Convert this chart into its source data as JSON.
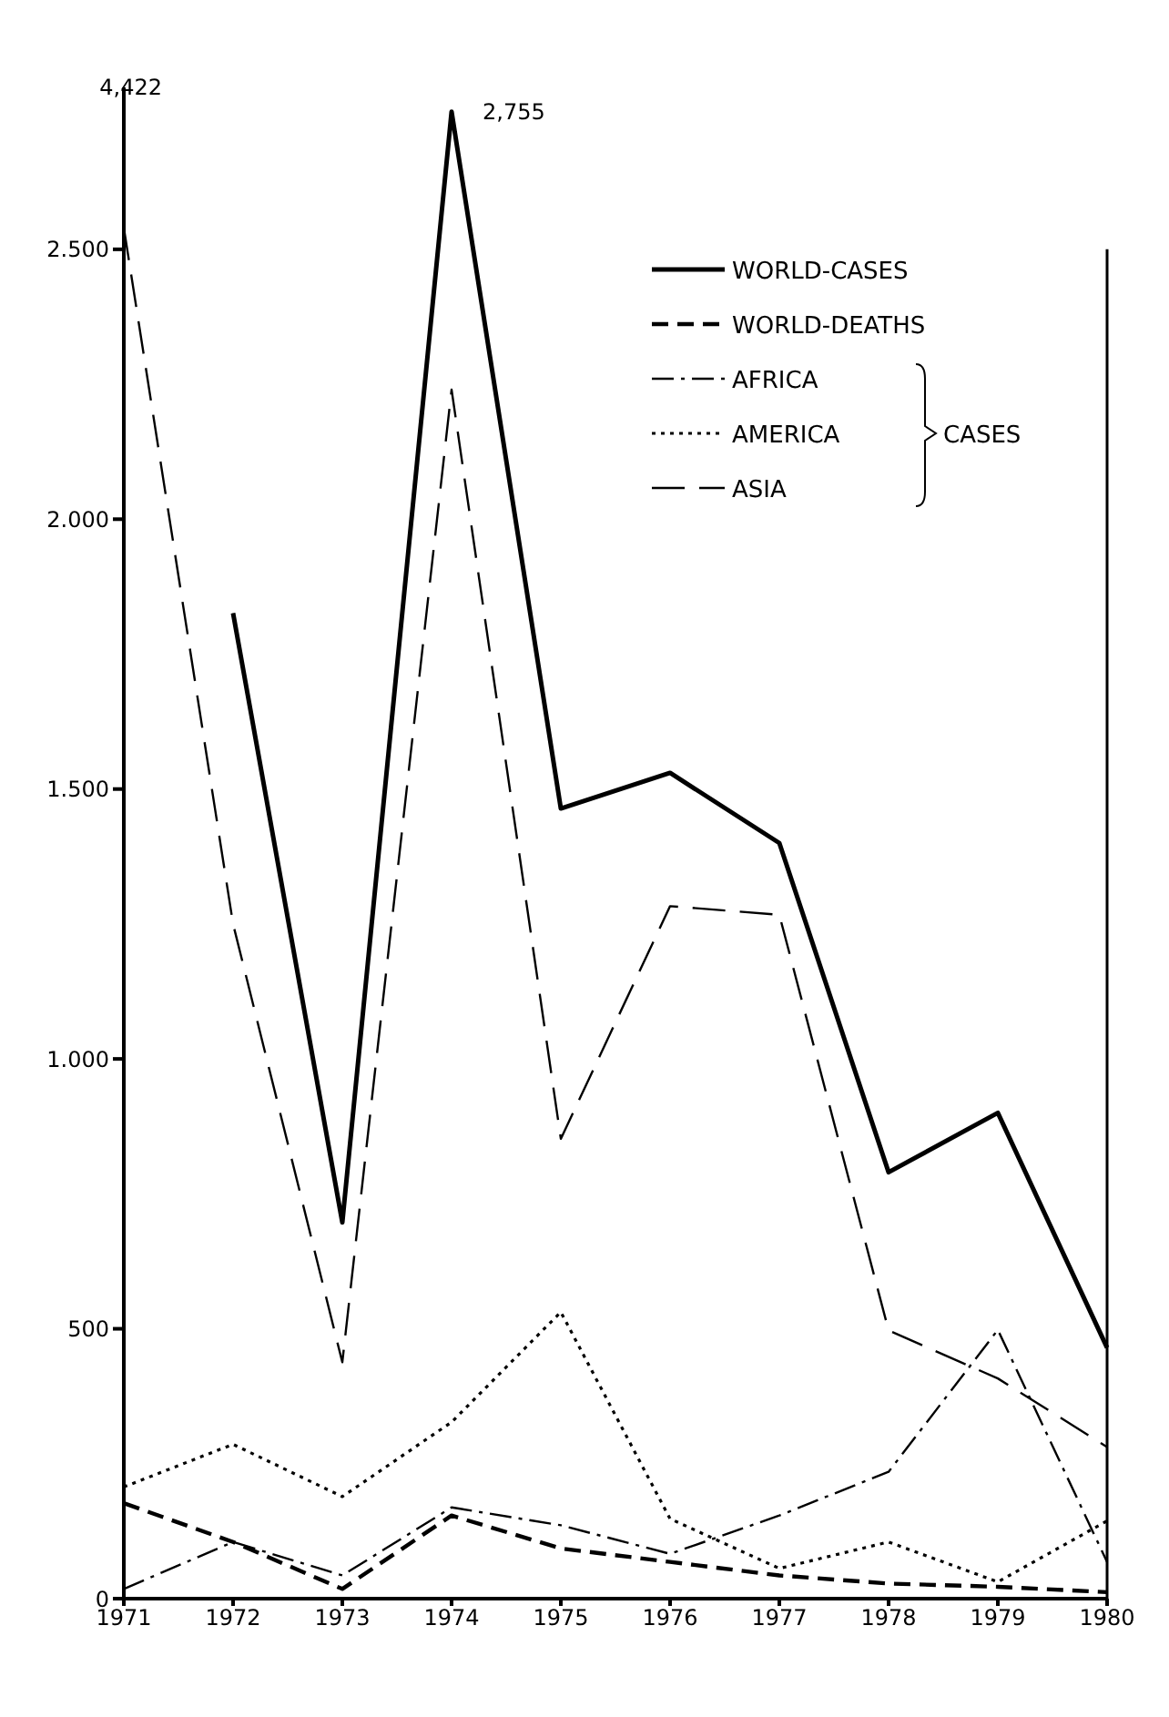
{
  "chart_data": {
    "type": "line",
    "categories": [
      "1971",
      "1972",
      "1973",
      "1974",
      "1975",
      "1976",
      "1977",
      "1978",
      "1979",
      "1980"
    ],
    "series": [
      {
        "name": "WORLD-CASES",
        "color": "#000000",
        "line_style": "solid",
        "values": [
          null,
          1826,
          697,
          2755,
          1464,
          1530,
          1400,
          790,
          900,
          465
        ]
      },
      {
        "name": "WORLD-DEATHS",
        "color": "#000000",
        "line_style": "dashed",
        "values": [
          177,
          105,
          18,
          154,
          93,
          68,
          43,
          28,
          22,
          12
        ]
      },
      {
        "name": "AFRICA",
        "color": "#000000",
        "line_style": "dashdot",
        "values": [
          18,
          105,
          43,
          169,
          136,
          83,
          154,
          235,
          498,
          68
        ]
      },
      {
        "name": "AMERICA",
        "color": "#000000",
        "line_style": "dotted",
        "values": [
          207,
          286,
          189,
          327,
          531,
          148,
          56,
          105,
          31,
          144
        ]
      },
      {
        "name": "ASIA",
        "color": "#000000",
        "line_style": "longdash",
        "values": [
          2540,
          1250,
          438,
          2240,
          852,
          1283,
          1267,
          497,
          408,
          281
        ]
      }
    ],
    "ylim": [
      0,
      2800
    ],
    "yticks": [
      0,
      {
        "value": 500,
        "label": "500"
      },
      {
        "value": 1000,
        "label": "1.000"
      },
      {
        "value": 1500,
        "label": "1.500"
      },
      {
        "value": 2000,
        "label": "2.000"
      },
      {
        "value": 2500,
        "label": "2.500"
      }
    ],
    "annotations": [
      "4,422",
      {
        "text": "2,755",
        "x": "1974",
        "y": 2755
      },
      "CASES"
    ],
    "legend": "top right",
    "grid": false,
    "marker": "none"
  }
}
